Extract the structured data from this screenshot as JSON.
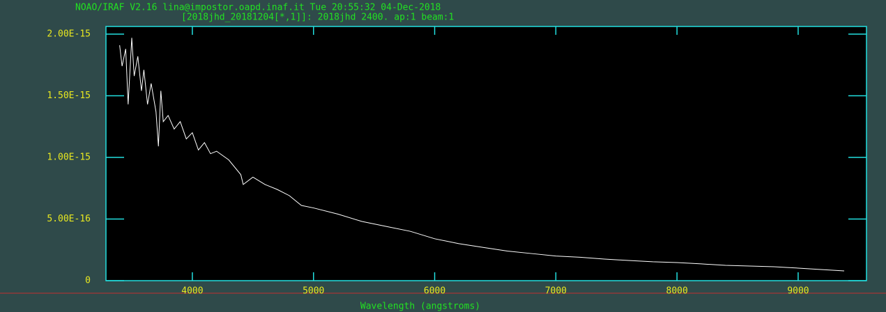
{
  "chart_data": {
    "type": "line",
    "title": "NOAO/IRAF V2.16 lina@impostor.oapd.inaf.it Tue 20:55:32 04-Dec-2018",
    "subtitle": "[2018jhd_20181204[*,1]]: 2018jhd 2400. ap:1 beam:1",
    "x_label": "Wavelength (angstroms)",
    "color": "#ffffff",
    "x": [
      3400,
      3420,
      3450,
      3470,
      3500,
      3520,
      3550,
      3580,
      3600,
      3630,
      3660,
      3700,
      3720,
      3740,
      3760,
      3800,
      3850,
      3900,
      3950,
      4000,
      4050,
      4100,
      4150,
      4200,
      4300,
      4400,
      4420,
      4500,
      4600,
      4700,
      4800,
      4900,
      5000,
      5200,
      5400,
      5600,
      5800,
      6000,
      6200,
      6400,
      6600,
      6800,
      7000,
      7200,
      7400,
      7600,
      7800,
      8000,
      8200,
      8400,
      8600,
      8800,
      8900,
      9000,
      9200,
      9380
    ],
    "values": [
      1.91e-15,
      1.74e-15,
      1.88e-15,
      1.43e-15,
      1.97e-15,
      1.66e-15,
      1.82e-15,
      1.54e-15,
      1.71e-15,
      1.43e-15,
      1.6e-15,
      1.37e-15,
      1.09e-15,
      1.54e-15,
      1.29e-15,
      1.34e-15,
      1.23e-15,
      1.29e-15,
      1.15e-15,
      1.2e-15,
      1.06e-15,
      1.12e-15,
      1.03e-15,
      1.05e-15,
      9.8e-16,
      8.6e-16,
      7.8e-16,
      8.4e-16,
      7.8e-16,
      7.4e-16,
      6.9e-16,
      6.1e-16,
      5.9e-16,
      5.4e-16,
      4.8e-16,
      4.4e-16,
      4e-16,
      3.4e-16,
      3e-16,
      2.7e-16,
      2.4e-16,
      2.2e-16,
      2e-16,
      1.9e-16,
      1.75e-16,
      1.64e-16,
      1.53e-16,
      1.47e-16,
      1.36e-16,
      1.24e-16,
      1.19e-16,
      1.13e-16,
      1.07e-16,
      1.02e-16,
      9e-17,
      7.9e-17
    ],
    "xlim": [
      3287,
      9564
    ],
    "ylim": [
      0,
      2.062e-15
    ],
    "xticks": [
      4000,
      5000,
      6000,
      7000,
      8000,
      9000
    ],
    "yticks": [
      0,
      {
        "value": 5e-16,
        "label": "5.00E-16"
      },
      {
        "value": 1e-15,
        "label": "1.00E-15"
      },
      {
        "value": 1.5e-15,
        "label": "1.50E-15"
      },
      {
        "value": 2e-15,
        "label": "2.00E-15"
      }
    ]
  }
}
